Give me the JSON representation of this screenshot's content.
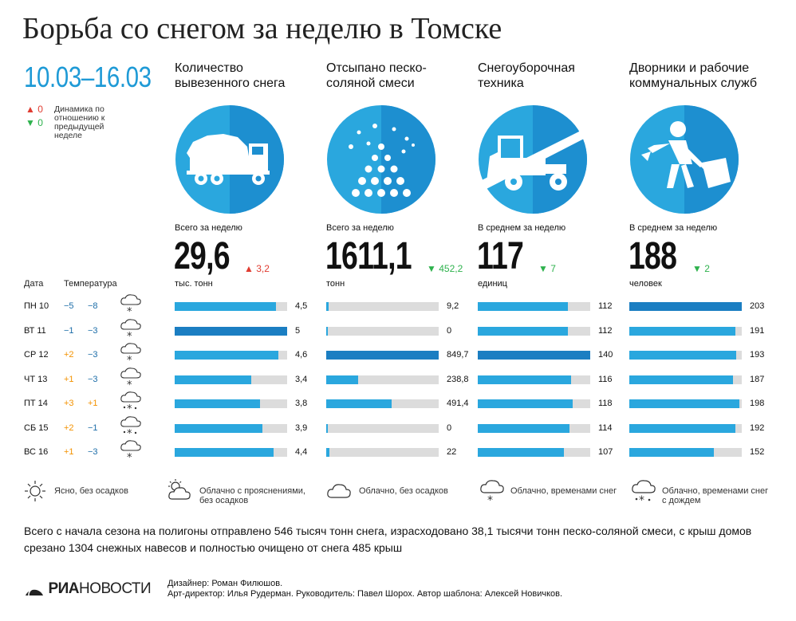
{
  "title": "Борьба со снегом за неделю в Томске",
  "date_range": "10.03–16.03",
  "legend": {
    "up_symbol": "▲",
    "up_value": "0",
    "down_symbol": "▼",
    "down_value": "0",
    "text": "Динамика по отношению к предыдущей неделе"
  },
  "colors": {
    "accent": "#2aa7de",
    "accent_dark": "#1b7ec2",
    "circle_light": "#2aa7de",
    "circle_dark": "#1d8fd0",
    "track": "#dcdcdc",
    "up": "#e03c31",
    "down": "#2eb24d",
    "warm": "#f39200",
    "cold": "#1c6da8"
  },
  "table_header": {
    "date": "Дата",
    "temperature": "Температура"
  },
  "days": [
    {
      "label": "ПН 10",
      "t_day": "−5",
      "t_night": "−8",
      "weather_icon": "cloud-snow-icon"
    },
    {
      "label": "ВТ 11",
      "t_day": "−1",
      "t_night": "−3",
      "weather_icon": "cloud-snow-icon"
    },
    {
      "label": "СР 12",
      "t_day": "+2",
      "t_night": "−3",
      "weather_icon": "cloud-snow-icon"
    },
    {
      "label": "ЧТ 13",
      "t_day": "+1",
      "t_night": "−3",
      "weather_icon": "cloud-snow-icon"
    },
    {
      "label": "ПТ 14",
      "t_day": "+3",
      "t_night": "+1",
      "weather_icon": "cloud-snow-rain-icon"
    },
    {
      "label": "СБ 15",
      "t_day": "+2",
      "t_night": "−1",
      "weather_icon": "cloud-snow-rain-icon"
    },
    {
      "label": "ВС 16",
      "t_day": "+1",
      "t_night": "−3",
      "weather_icon": "cloud-snow-icon"
    }
  ],
  "chart_data": [
    {
      "type": "bar",
      "title": "Количество вывезенного снега",
      "total_label": "Всего за неделю",
      "total": "29,6",
      "delta_symbol": "▲",
      "delta": "3,2",
      "delta_dir": "up",
      "unit": "тыс. тонн",
      "icon": "dump-truck-icon",
      "categories": [
        "ПН 10",
        "ВТ 11",
        "СР 12",
        "ЧТ 13",
        "ПТ 14",
        "СБ 15",
        "ВС 16"
      ],
      "values": [
        4.5,
        5,
        4.6,
        3.4,
        3.8,
        3.9,
        4.4
      ],
      "labels": [
        "4,5",
        "5",
        "4,6",
        "3,4",
        "3,8",
        "3,9",
        "4,4"
      ],
      "max": 5
    },
    {
      "type": "bar",
      "title": "Отсыпано песко-соляной смеси",
      "total_label": "Всего за неделю",
      "total": "1611,1",
      "delta_symbol": "▼",
      "delta": "452,2",
      "delta_dir": "down",
      "unit": "тонн",
      "icon": "sand-pile-icon",
      "categories": [
        "ПН 10",
        "ВТ 11",
        "СР 12",
        "ЧТ 13",
        "ПТ 14",
        "СБ 15",
        "ВС 16"
      ],
      "values": [
        9.2,
        0,
        849.7,
        238.8,
        491.4,
        0,
        22
      ],
      "labels": [
        "9,2",
        "0",
        "849,7",
        "238,8",
        "491,4",
        "0",
        "22"
      ],
      "max": 849.7
    },
    {
      "type": "bar",
      "title": "Снегоуборочная техника",
      "total_label": "В среднем за неделю",
      "total": "117",
      "delta_symbol": "▼",
      "delta": "7",
      "delta_dir": "down",
      "unit": "единиц",
      "icon": "snowplow-icon",
      "categories": [
        "ПН 10",
        "ВТ 11",
        "СР 12",
        "ЧТ 13",
        "ПТ 14",
        "СБ 15",
        "ВС 16"
      ],
      "values": [
        112,
        112,
        140,
        116,
        118,
        114,
        107
      ],
      "labels": [
        "112",
        "112",
        "140",
        "116",
        "118",
        "114",
        "107"
      ],
      "max": 140
    },
    {
      "type": "bar",
      "title": "Дворники и рабочие коммунальных служб",
      "total_label": "В среднем за неделю",
      "total": "188",
      "delta_symbol": "▼",
      "delta": "2",
      "delta_dir": "down",
      "unit": "человек",
      "icon": "shovel-worker-icon",
      "categories": [
        "ПН 10",
        "ВТ 11",
        "СР 12",
        "ЧТ 13",
        "ПТ 14",
        "СБ 15",
        "ВС 16"
      ],
      "values": [
        203,
        191,
        193,
        187,
        198,
        192,
        152
      ],
      "labels": [
        "203",
        "191",
        "193",
        "187",
        "198",
        "192",
        "152"
      ],
      "max": 203
    }
  ],
  "weather_legend": [
    {
      "icon": "sun-icon",
      "text": "Ясно, без осадков"
    },
    {
      "icon": "sun-cloud-icon",
      "text": "Облачно с прояснениями, без осадков"
    },
    {
      "icon": "cloud-icon",
      "text": "Облачно, без осадков"
    },
    {
      "icon": "cloud-snow-icon",
      "text": "Облачно, временами снег"
    },
    {
      "icon": "cloud-snow-rain-icon",
      "text": "Облачно, временами снег с дождем"
    }
  ],
  "summary": "Всего с начала сезона на полигоны отправлено 546 тысяч тонн снега, израсходовано 38,1 тысячи тонн песко-соляной смеси, с крыш домов срезано 1304 снежных навесов и полностью очищено от снега 485 крыш",
  "credits": {
    "designer": "Дизайнер: Роман Филюшов.",
    "rest": "Арт-директор: Илья Рудерман. Руководитель: Павел Шорох. Автор шаблона: Алексей Новичков."
  },
  "logo": {
    "part1": "РИА",
    "part2": "НОВОСТИ"
  }
}
